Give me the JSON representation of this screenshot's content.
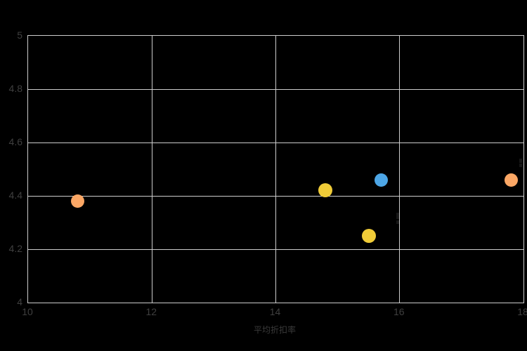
{
  "chart_data": {
    "type": "scatter",
    "title": "",
    "xlabel": "平均折扣率",
    "ylabel": "",
    "xlim": [
      10,
      18
    ],
    "ylim": [
      4,
      5
    ],
    "x_ticks": [
      10,
      12,
      14,
      16,
      18
    ],
    "x_tick_labels": [
      "10",
      "12",
      "14",
      "16",
      "18"
    ],
    "y_ticks": [
      4,
      4.2,
      4.4,
      4.6,
      4.8,
      5
    ],
    "y_tick_labels": [
      "4",
      "4.2",
      "4.4",
      "4.6",
      "4.8",
      "5"
    ],
    "grid": true,
    "legend": "none",
    "colors": {
      "background": "#000000",
      "gridline": "#cccccc",
      "tick_label": "#3f3f3f",
      "axis_title": "#3a3a3a",
      "orange": "#fba765",
      "yellow": "#f0cc38",
      "blue": "#4da6e6"
    },
    "points": [
      {
        "x": 10.8,
        "y": 4.38,
        "color": "#fba765",
        "size": 19
      },
      {
        "x": 14.8,
        "y": 4.42,
        "color": "#f0cc38",
        "size": 20
      },
      {
        "x": 15.7,
        "y": 4.46,
        "color": "#4da6e6",
        "size": 19
      },
      {
        "x": 15.5,
        "y": 4.25,
        "color": "#f0cc38",
        "size": 20
      },
      {
        "x": 17.8,
        "y": 4.46,
        "color": "#fba765",
        "size": 19
      }
    ],
    "label_artifacts": [
      {
        "x": 564,
        "y": 303,
        "w": 4,
        "h": 9
      },
      {
        "x": 564,
        "y": 314,
        "w": 4,
        "h": 5
      },
      {
        "x": 739,
        "y": 226,
        "w": 4,
        "h": 6
      },
      {
        "x": 739,
        "y": 233,
        "w": 4,
        "h": 5
      }
    ]
  }
}
